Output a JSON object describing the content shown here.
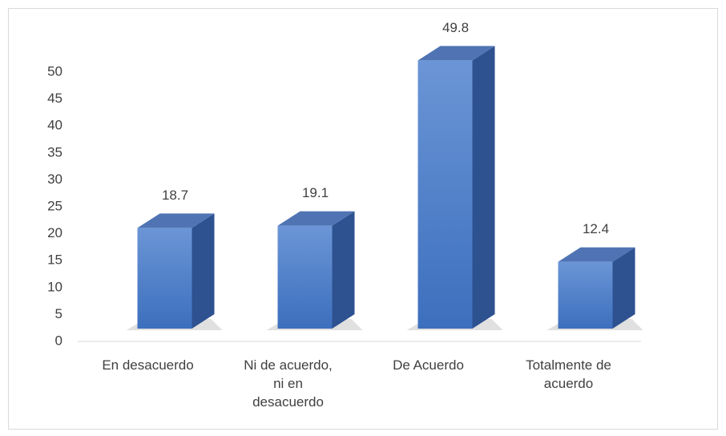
{
  "chart_data": {
    "type": "bar3d",
    "categories": [
      "En desacuerdo",
      "Ni de acuerdo, ni en desacuerdo",
      "De Acuerdo",
      "Totalmente de acuerdo"
    ],
    "values": [
      18.7,
      19.1,
      49.8,
      12.4
    ],
    "color": "#4a7cc6",
    "ylim": [
      0,
      50
    ],
    "yticks": [
      0,
      5,
      10,
      15,
      20,
      25,
      30,
      35,
      40,
      45,
      50
    ],
    "grid": false
  }
}
